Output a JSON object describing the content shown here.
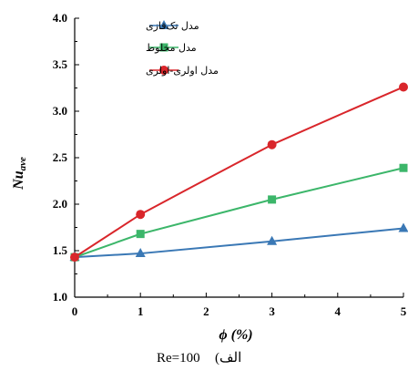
{
  "chart_data": {
    "type": "line",
    "x": [
      0,
      1,
      3,
      5
    ],
    "xticks": [
      "0",
      "1",
      "2",
      "3",
      "4",
      "5"
    ],
    "yticks": [
      "1.0",
      "1.5",
      "2.0",
      "2.5",
      "3.0",
      "3.5",
      "4.0"
    ],
    "xlim": [
      0,
      5
    ],
    "ylim": [
      1.0,
      4.0
    ],
    "xlabel": "ϕ (%)",
    "ylabel": "Nu",
    "ylabel_sub": "ave",
    "grid": false,
    "legend_position": "top-left",
    "series": [
      {
        "name": "مدل تک‌فازی",
        "marker": "triangle",
        "color": "#3a78b5",
        "values": [
          1.43,
          1.47,
          1.6,
          1.74
        ]
      },
      {
        "name": "مدل مخلوط",
        "marker": "square",
        "color": "#3cb66a",
        "values": [
          1.43,
          1.68,
          2.05,
          2.39
        ]
      },
      {
        "name": "مدل اولری-اولری",
        "marker": "circle",
        "color": "#d9262b",
        "values": [
          1.43,
          1.89,
          2.64,
          3.26
        ]
      }
    ],
    "caption_prefix": "Re=100",
    "caption_suffix": "(الف"
  }
}
